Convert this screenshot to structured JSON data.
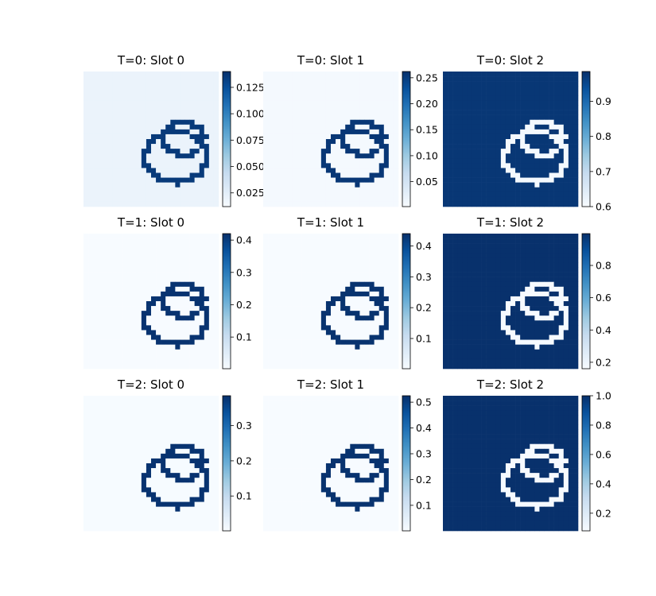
{
  "chart_data": {
    "type": "heatmap",
    "colormap": "Blues",
    "grid_shape": [
      3,
      3
    ],
    "panels": [
      {
        "title": "T=0: Slot 0",
        "timestep": 0,
        "slot": 0,
        "vmin": 0.012,
        "vmax": 0.14,
        "background": 0.02,
        "ring": 0.135,
        "ticks": [
          0.025,
          0.05,
          0.075,
          0.1,
          0.125
        ],
        "tick_labels": [
          "0.025",
          "0.050",
          "0.075",
          "0.100",
          "0.125"
        ]
      },
      {
        "title": "T=0: Slot 1",
        "timestep": 0,
        "slot": 1,
        "vmin": 0.002,
        "vmax": 0.262,
        "background": 0.006,
        "ring": 0.255,
        "ticks": [
          0.05,
          0.1,
          0.15,
          0.2,
          0.25
        ],
        "tick_labels": [
          "0.05",
          "0.10",
          "0.15",
          "0.20",
          "0.25"
        ]
      },
      {
        "title": "T=0: Slot 2",
        "timestep": 0,
        "slot": 2,
        "vmin": 0.6,
        "vmax": 0.985,
        "background": 0.975,
        "ring": 0.605,
        "ticks": [
          0.6,
          0.7,
          0.8,
          0.9
        ],
        "tick_labels": [
          "0.6",
          "0.7",
          "0.8",
          "0.9"
        ]
      },
      {
        "title": "T=1: Slot 0",
        "timestep": 1,
        "slot": 0,
        "vmin": 0.002,
        "vmax": 0.42,
        "background": 0.003,
        "ring": 0.415,
        "ticks": [
          0.1,
          0.2,
          0.3,
          0.4
        ],
        "tick_labels": [
          "0.1",
          "0.2",
          "0.3",
          "0.4"
        ]
      },
      {
        "title": "T=1: Slot 1",
        "timestep": 1,
        "slot": 1,
        "vmin": 0.002,
        "vmax": 0.44,
        "background": 0.003,
        "ring": 0.435,
        "ticks": [
          0.1,
          0.2,
          0.3,
          0.4
        ],
        "tick_labels": [
          "0.1",
          "0.2",
          "0.3",
          "0.4"
        ]
      },
      {
        "title": "T=1: Slot 2",
        "timestep": 1,
        "slot": 2,
        "vmin": 0.16,
        "vmax": 0.997,
        "background": 0.995,
        "ring": 0.165,
        "ticks": [
          0.2,
          0.4,
          0.6,
          0.8
        ],
        "tick_labels": [
          "0.2",
          "0.4",
          "0.6",
          "0.8"
        ]
      },
      {
        "title": "T=2: Slot 0",
        "timestep": 2,
        "slot": 0,
        "vmin": 0.001,
        "vmax": 0.385,
        "background": 0.002,
        "ring": 0.38,
        "ticks": [
          0.1,
          0.2,
          0.3
        ],
        "tick_labels": [
          "0.1",
          "0.2",
          "0.3"
        ]
      },
      {
        "title": "T=2: Slot 1",
        "timestep": 2,
        "slot": 1,
        "vmin": 0.001,
        "vmax": 0.525,
        "background": 0.002,
        "ring": 0.52,
        "ticks": [
          0.1,
          0.2,
          0.3,
          0.4,
          0.5
        ],
        "tick_labels": [
          "0.1",
          "0.2",
          "0.3",
          "0.4",
          "0.5"
        ]
      },
      {
        "title": "T=2: Slot 2",
        "timestep": 2,
        "slot": 2,
        "vmin": 0.08,
        "vmax": 1.0,
        "background": 0.998,
        "ring": 0.085,
        "ticks": [
          0.2,
          0.4,
          0.6,
          0.8,
          1.0
        ],
        "tick_labels": [
          "0.2",
          "0.4",
          "0.6",
          "0.8",
          "1.0"
        ]
      }
    ]
  }
}
